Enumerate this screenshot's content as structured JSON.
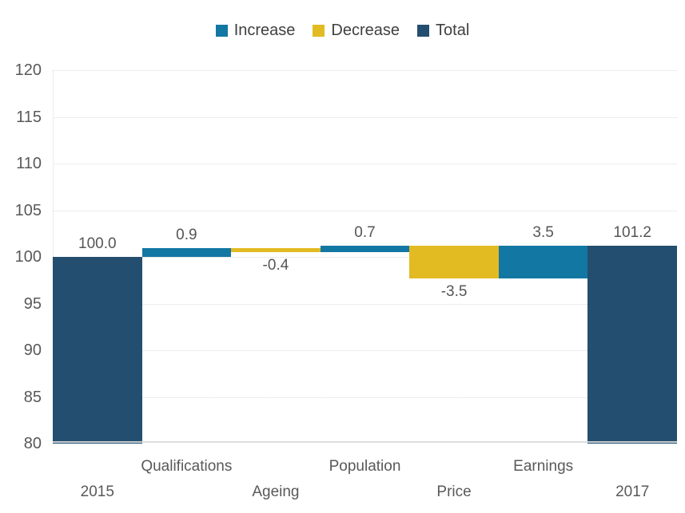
{
  "chart_data": {
    "type": "bar",
    "subtype": "waterfall",
    "title": "",
    "xlabel": "",
    "ylabel": "",
    "ylim": [
      80,
      120
    ],
    "y_ticks": [
      120,
      115,
      110,
      105,
      100,
      95,
      90,
      85,
      80
    ],
    "grid": true,
    "categories": [
      "2015",
      "Qualifications",
      "Ageing",
      "Population",
      "Price",
      "Earnings",
      "2017"
    ],
    "bars": [
      {
        "category": "2015",
        "value": 100.0,
        "kind": "total",
        "label": "100.0"
      },
      {
        "category": "Qualifications",
        "value": 0.9,
        "kind": "increase",
        "label": "0.9"
      },
      {
        "category": "Ageing",
        "value": -0.4,
        "kind": "decrease",
        "label": "-0.4"
      },
      {
        "category": "Population",
        "value": 0.7,
        "kind": "increase",
        "label": "0.7"
      },
      {
        "category": "Price",
        "value": -3.5,
        "kind": "decrease",
        "label": "-3.5"
      },
      {
        "category": "Earnings",
        "value": 3.5,
        "kind": "increase",
        "label": "3.5"
      },
      {
        "category": "2017",
        "value": 101.2,
        "kind": "total",
        "label": "101.2"
      }
    ],
    "start_value": 100.0,
    "end_value": 101.2,
    "legend": {
      "position": "top",
      "entries": [
        {
          "label": "Increase",
          "kind": "increase"
        },
        {
          "label": "Decrease",
          "kind": "decrease"
        },
        {
          "label": "Total",
          "kind": "total"
        }
      ]
    }
  },
  "colors": {
    "increase": "#1277A3",
    "decrease": "#E2BB22",
    "total": "#244E6F",
    "gridline": "#D9D9D9",
    "axis_text": "#595959",
    "bar_label": "#555555"
  }
}
